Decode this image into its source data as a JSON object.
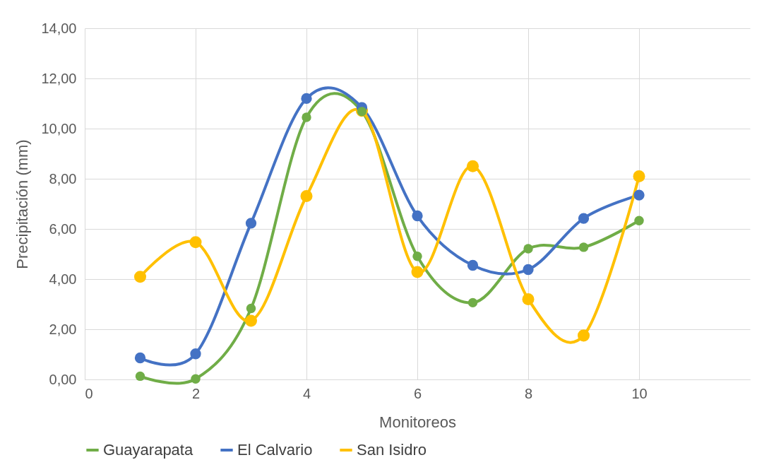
{
  "chart_data": {
    "type": "line",
    "xlabel": "Monitoreos",
    "ylabel": "Precipitación (mm)",
    "x": [
      1,
      2,
      3,
      4,
      5,
      6,
      7,
      8,
      9,
      10
    ],
    "series": [
      {
        "name": "Guayarapata",
        "color": "#70ad47",
        "values": [
          0.13,
          0.02,
          2.83,
          10.45,
          10.68,
          4.91,
          3.06,
          5.21,
          5.27,
          6.33
        ]
      },
      {
        "name": "El Calvario",
        "color": "#4472c4",
        "values": [
          0.86,
          1.02,
          6.23,
          11.2,
          10.84,
          6.52,
          4.55,
          4.38,
          6.42,
          7.35
        ]
      },
      {
        "name": "San Isidro",
        "color": "#ffc000",
        "values": [
          4.09,
          5.47,
          2.34,
          7.31,
          10.71,
          4.28,
          8.5,
          3.2,
          1.75,
          8.1
        ]
      }
    ],
    "xlim": [
      0,
      12
    ],
    "xticks": [
      0,
      2,
      4,
      6,
      8,
      10
    ],
    "ylim": [
      0,
      14
    ],
    "yticks": [
      {
        "value": 0,
        "label": "0,00"
      },
      {
        "value": 2,
        "label": "2,00"
      },
      {
        "value": 4,
        "label": "4,00"
      },
      {
        "value": 6,
        "label": "6,00"
      },
      {
        "value": 8,
        "label": "8,00"
      },
      {
        "value": 10,
        "label": "10,00"
      },
      {
        "value": 12,
        "label": "12,00"
      },
      {
        "value": 14,
        "label": "14,00"
      }
    ],
    "grid": true,
    "legend": "bottom",
    "marker": "circle",
    "line_style": "solid"
  }
}
